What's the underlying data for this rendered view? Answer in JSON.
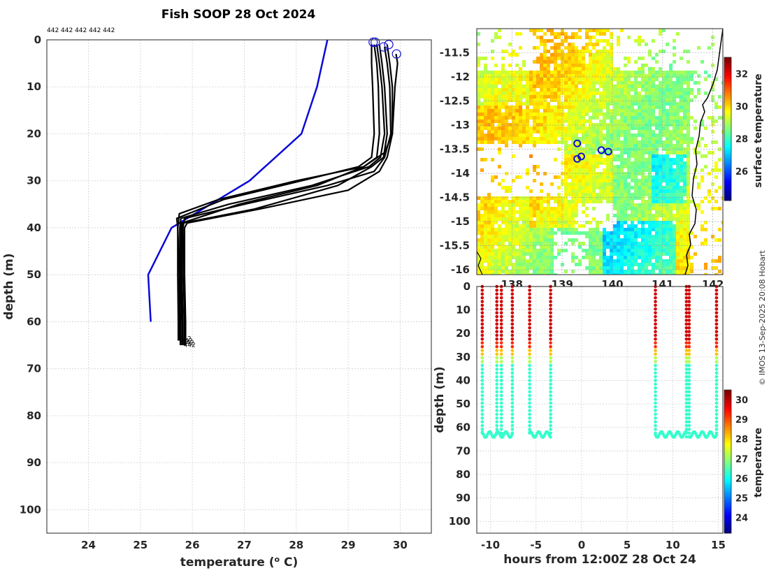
{
  "title": "Fish SOOP 28 Oct 2024",
  "credit": "© IMOS 13-Sep-2025 20:08 Hobart",
  "colors": {
    "profiles": "#000000",
    "climatology": "#0a0ad8",
    "markers": "#1010d0"
  },
  "chart_data": [
    {
      "type": "line",
      "name": "temperature-profiles",
      "xlabel": "temperature (°C)",
      "ylabel": "depth (m)",
      "xlim": [
        23.2,
        30.6
      ],
      "ylim": [
        105,
        0
      ],
      "xticks": [
        24,
        25,
        26,
        27,
        28,
        29,
        30
      ],
      "yticks": [
        0,
        10,
        20,
        30,
        40,
        50,
        60,
        70,
        80,
        90,
        100
      ],
      "top_label": "442 442 442 442 442",
      "end_labels": [
        "442",
        "442",
        "442",
        "442"
      ],
      "climatology": {
        "temperature": [
          28.6,
          28.4,
          28.1,
          27.1,
          25.6,
          25.15,
          25.2
        ],
        "depth": [
          0,
          10,
          20,
          30,
          40,
          50,
          60
        ]
      },
      "profiles": [
        {
          "t": [
            29.45,
            29.45,
            29.47,
            29.5,
            29.45,
            29.2,
            28.1,
            26.6,
            25.7,
            25.72,
            25.75,
            25.75,
            25.75
          ],
          "d": [
            1,
            5,
            10,
            20,
            25,
            27,
            30,
            34,
            38,
            40,
            50,
            60,
            64
          ]
        },
        {
          "t": [
            29.5,
            29.55,
            29.58,
            29.6,
            29.55,
            29.3,
            28.4,
            26.9,
            25.8,
            25.78,
            25.78,
            25.8,
            25.8
          ],
          "d": [
            1,
            5,
            10,
            20,
            25,
            27,
            31,
            35,
            39,
            40,
            50,
            60,
            65
          ]
        },
        {
          "t": [
            29.7,
            29.75,
            29.8,
            29.82,
            29.7,
            29.5,
            28.6,
            27.0,
            25.85,
            25.82,
            25.83,
            25.85,
            25.85
          ],
          "d": [
            1.5,
            5,
            10,
            20,
            25,
            28,
            31,
            35,
            38,
            40,
            50,
            60,
            65
          ]
        },
        {
          "t": [
            29.75,
            29.8,
            29.85,
            29.85,
            29.75,
            29.6,
            29.0,
            27.3,
            25.9,
            25.85,
            25.85,
            25.87,
            25.87
          ],
          "d": [
            1,
            5,
            10,
            20,
            25,
            28,
            32,
            36,
            39,
            40,
            50,
            60,
            65
          ]
        },
        {
          "t": [
            29.92,
            29.95,
            29.9,
            29.85,
            29.7,
            29.3,
            28.0,
            26.5,
            25.75,
            25.72,
            25.72,
            25.73,
            25.73
          ],
          "d": [
            3,
            5,
            10,
            20,
            24,
            27,
            30,
            34,
            37,
            40,
            50,
            60,
            64
          ]
        },
        {
          "t": [
            29.55,
            29.6,
            29.65,
            29.7,
            29.62,
            29.4,
            28.3,
            26.7,
            25.78,
            25.76,
            25.76,
            25.77,
            25.77
          ],
          "d": [
            1,
            5,
            10,
            20,
            25,
            27,
            31,
            35,
            38,
            40,
            50,
            60,
            65
          ]
        },
        {
          "t": [
            29.6,
            29.65,
            29.7,
            29.75,
            29.68,
            29.45,
            28.8,
            27.2,
            25.82,
            25.8,
            25.8,
            25.82,
            25.82
          ],
          "d": [
            1,
            5,
            10,
            20,
            25,
            27,
            31,
            36,
            39,
            40,
            50,
            60,
            65
          ]
        }
      ],
      "start_markers": [
        {
          "t": 29.48,
          "d": 0.5
        },
        {
          "t": 29.52,
          "d": 0.5
        },
        {
          "t": 29.68,
          "d": 1.5
        },
        {
          "t": 29.78,
          "d": 1
        },
        {
          "t": 29.93,
          "d": 3
        }
      ]
    },
    {
      "type": "heatmap",
      "name": "surface-temperature-map",
      "colorbar_label": "surface temperature",
      "colorbar_range": [
        24.2,
        33
      ],
      "colorbar_ticks": [
        26,
        28,
        30,
        32
      ],
      "xlim": [
        137.3,
        142.2
      ],
      "ylim": [
        -16.1,
        -11.0
      ],
      "xtick_labels": [
        "138",
        "139",
        "140",
        "141",
        "142"
      ],
      "xticks": [
        138,
        139,
        140,
        141,
        142
      ],
      "yticks": [
        -11.5,
        -12,
        -12.5,
        -13,
        -13.5,
        -14,
        -14.5,
        -15,
        -15.5,
        -16
      ],
      "ytick_labels": [
        "-11.5",
        "-12",
        "-12.5",
        "-13",
        "-13.5",
        "-14",
        "-14.5",
        "-15",
        "-15.5",
        "-16"
      ],
      "stations": [
        {
          "lon": 139.3,
          "lat": -13.38
        },
        {
          "lon": 139.3,
          "lat": -13.7
        },
        {
          "lon": 139.38,
          "lat": -13.65
        },
        {
          "lon": 139.78,
          "lat": -13.52
        },
        {
          "lon": 139.92,
          "lat": -13.55
        }
      ]
    },
    {
      "type": "scatter",
      "name": "depth-time-section",
      "xlabel": "hours from 12:00Z 28 Oct 24",
      "ylabel": "depth (m)",
      "xlim": [
        -11.5,
        15.5
      ],
      "ylim": [
        105,
        0
      ],
      "xticks": [
        -10,
        -5,
        0,
        5,
        10,
        15
      ],
      "yticks": [
        0,
        10,
        20,
        30,
        40,
        50,
        60,
        70,
        80,
        90,
        100
      ],
      "colorbar_label": "temperature",
      "colorbar_range": [
        23.2,
        30.5
      ],
      "colorbar_ticks": [
        24,
        25,
        26,
        27,
        28,
        29,
        30
      ],
      "casts": [
        {
          "h": -10.9,
          "maxd": 64
        },
        {
          "h": -9.3,
          "maxd": 63
        },
        {
          "h": -8.8,
          "maxd": 63
        },
        {
          "h": -7.6,
          "maxd": 64
        },
        {
          "h": -5.7,
          "maxd": 63
        },
        {
          "h": -3.4,
          "maxd": 63
        },
        {
          "h": 8.1,
          "maxd": 64
        },
        {
          "h": 11.5,
          "maxd": 65
        },
        {
          "h": 11.8,
          "maxd": 65
        },
        {
          "h": 14.8,
          "maxd": 64
        }
      ]
    }
  ]
}
